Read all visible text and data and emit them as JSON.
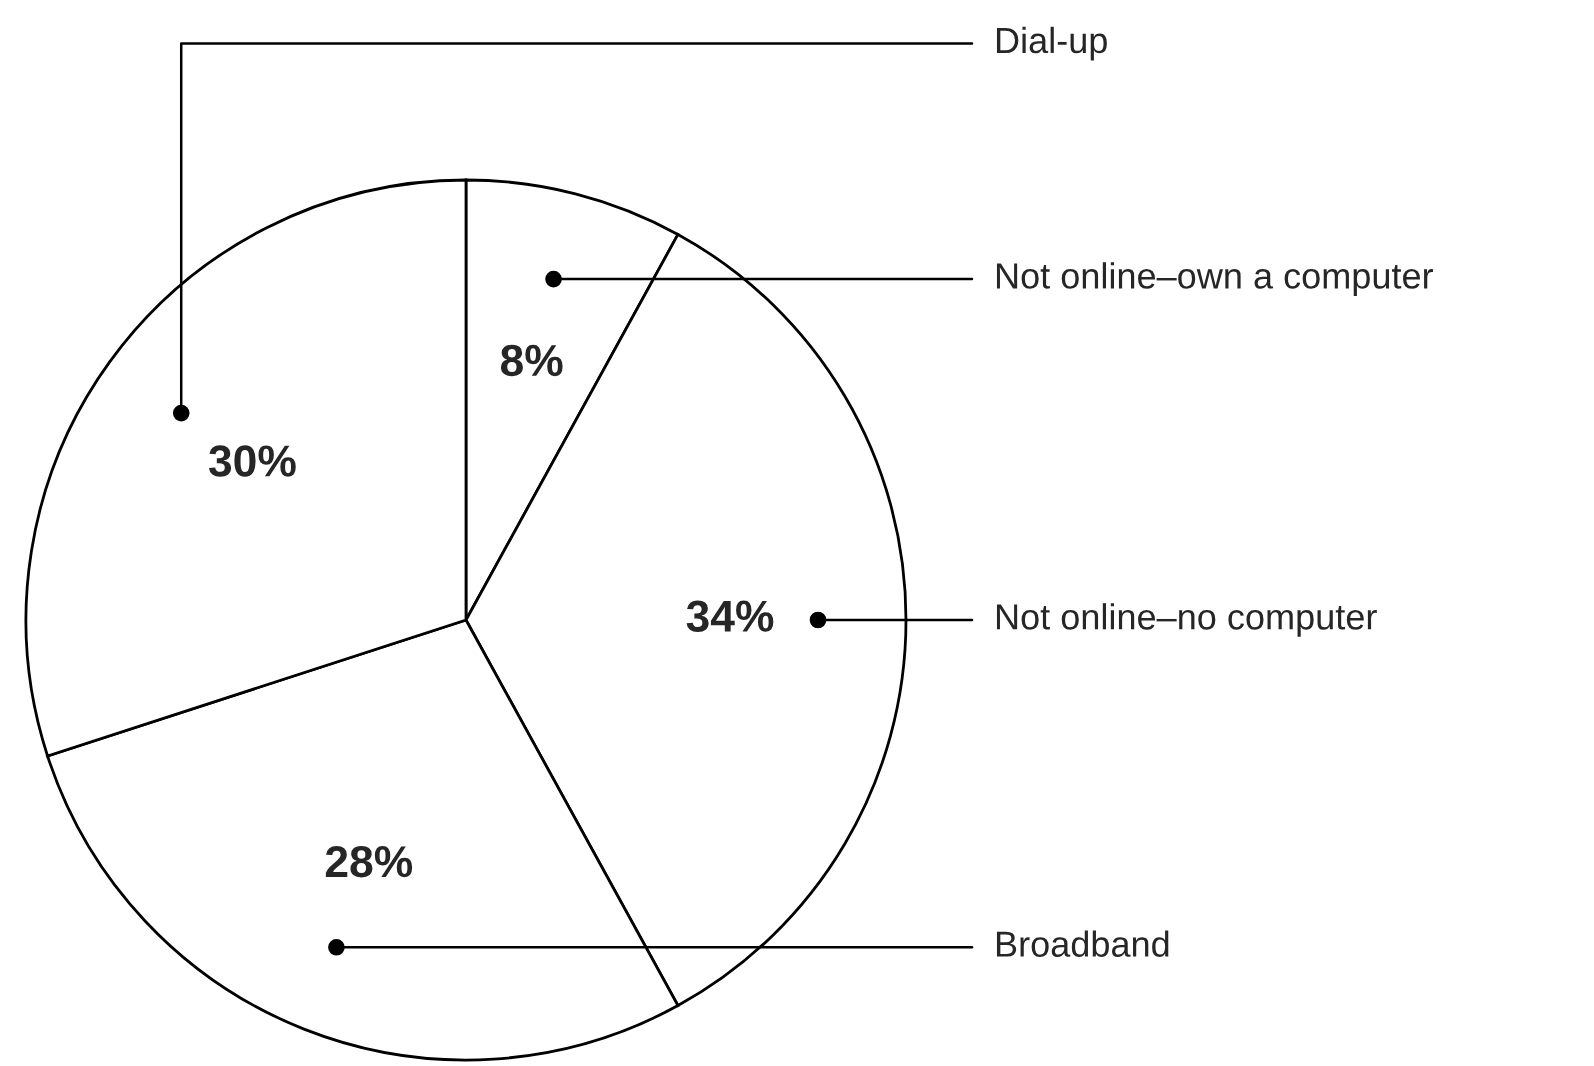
{
  "chart_data": {
    "type": "pie",
    "categories": [
      "Not online–own a computer",
      "Not online–no computer",
      "Broadband",
      "Dial-up"
    ],
    "values": [
      8,
      34,
      28,
      30
    ],
    "colors": [
      "#ffffff",
      "#ffffff",
      "#ffffff",
      "#ffffff"
    ],
    "value_labels": [
      "8%",
      "34%",
      "28%",
      "30%"
    ]
  }
}
